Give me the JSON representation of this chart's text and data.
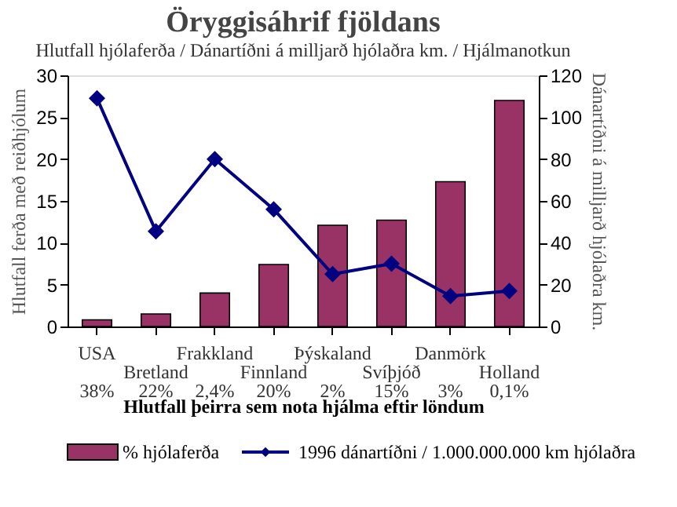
{
  "chart_data": {
    "type": "bar",
    "title": "Öryggisáhrif fjöldans",
    "subtitle": "Hlutfall hjólaferða / Dánartíðni á milljarð hjólaðra km. / Hjálmanotkun",
    "categories": [
      "USA",
      "Bretland",
      "Frakkland",
      "Finnland",
      "Þýskaland",
      "Svíþjóð",
      "Danmörk",
      "Holland"
    ],
    "xlabel": "Hlutfall þeirra sem nota hjálma eftir löndum",
    "ylabel": "Hlutfall ferða með reiðhjólum",
    "y2label": "Dánartíðni á milljarð hjólaðra km.",
    "series": [
      {
        "name": "% hjólaferða",
        "color": "#993366",
        "values": [
          0.8,
          1.5,
          4,
          7.4,
          12.1,
          12.7,
          17.3,
          27
        ]
      },
      {
        "name": "1996 dánartíðni / 1.000.000.000 km hjólaðra",
        "type": "line",
        "axis": "y2",
        "color": "#000080",
        "marker": "diamond",
        "values": [
          109,
          45.5,
          80,
          56,
          25,
          30,
          14.5,
          17
        ]
      }
    ],
    "ylim": [
      0,
      30
    ],
    "yticks": [
      0,
      5,
      10,
      15,
      20,
      25,
      30
    ],
    "y2lim": [
      0,
      120
    ],
    "y2ticks": [
      0,
      20,
      40,
      60,
      80,
      100,
      120
    ],
    "annotations": [
      "38%",
      "22%",
      "2,4%",
      "20%",
      "2%",
      "15%",
      "3%",
      "0,1%"
    ],
    "grid": false,
    "legend": "bottom"
  }
}
